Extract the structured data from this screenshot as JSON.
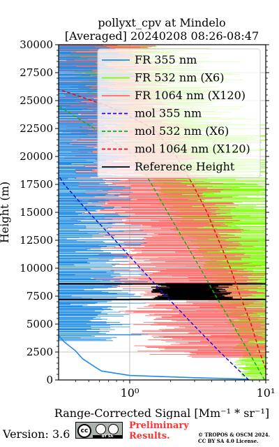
{
  "chart_data": {
    "type": "line",
    "title_line1": "pollyxt_cpv at Mindelo",
    "title_line2": "[Averaged] 20240208 08:26-08:47",
    "xlabel": "Range-Corrected Signal [Mm⁻¹ * sr⁻¹]",
    "ylabel": "Height (m)",
    "x_scale": "log",
    "xlim": [
      0.3,
      10
    ],
    "ylim": [
      0,
      30000
    ],
    "x_ticks": [
      1,
      10
    ],
    "x_tick_labels": [
      "10⁰",
      "10¹"
    ],
    "y_ticks": [
      0,
      2500,
      5000,
      7500,
      10000,
      12500,
      15000,
      17500,
      20000,
      22500,
      25000,
      27500,
      30000
    ],
    "y_tick_labels": [
      "0",
      "2500",
      "5000",
      "7500",
      "10000",
      "12500",
      "15000",
      "17500",
      "20000",
      "22500",
      "25000",
      "27500",
      "30000"
    ],
    "grid": true,
    "legend_position": "top-right",
    "series": [
      {
        "name": "FR 355 nm",
        "color": "#1f8ce8",
        "style": "solid",
        "points": [
          [
            7.5,
            0
          ],
          [
            7.0,
            80
          ],
          [
            3.0,
            200
          ],
          [
            1.0,
            400
          ],
          [
            0.62,
            800
          ],
          [
            0.55,
            1200
          ],
          [
            0.45,
            1900
          ],
          [
            0.4,
            2600
          ],
          [
            0.33,
            3400
          ],
          [
            0.3,
            4000
          ]
        ],
        "noisy_region": [
          3500,
          30000
        ]
      },
      {
        "name": "FR 532 nm (X6)",
        "color": "#7fff00",
        "style": "solid",
        "points": [
          [
            9.5,
            0
          ],
          [
            9.0,
            1500
          ],
          [
            8.5,
            3000
          ],
          [
            7.5,
            5500
          ],
          [
            6.0,
            8000
          ],
          [
            4.0,
            12000
          ],
          [
            2.5,
            16000
          ],
          [
            1.3,
            21000
          ],
          [
            0.7,
            26000
          ],
          [
            0.4,
            30000
          ]
        ],
        "noisy_region": [
          0,
          30000
        ]
      },
      {
        "name": "FR 1064 nm (X120)",
        "color": "#ff6a6a",
        "style": "solid",
        "points": [
          [
            9.0,
            0
          ],
          [
            7.0,
            2000
          ],
          [
            5.5,
            4000
          ],
          [
            4.8,
            6000
          ],
          [
            4.5,
            8000
          ],
          [
            3.0,
            12000
          ],
          [
            2.0,
            16000
          ],
          [
            1.3,
            20000
          ],
          [
            0.9,
            24000
          ],
          [
            0.6,
            30000
          ]
        ],
        "noisy_region": [
          2000,
          30000
        ]
      },
      {
        "name": "mol 355 nm",
        "color": "#1010e0",
        "style": "dashed",
        "points": [
          [
            7.5,
            0
          ],
          [
            4.6,
            2500
          ],
          [
            2.9,
            5000
          ],
          [
            1.85,
            7500
          ],
          [
            1.2,
            10000
          ],
          [
            0.78,
            12500
          ],
          [
            0.5,
            15000
          ],
          [
            0.33,
            17500
          ],
          [
            0.3,
            18300
          ]
        ]
      },
      {
        "name": "mol 532 nm (X6)",
        "color": "#10b010",
        "style": "dashed",
        "points": [
          [
            9.8,
            0
          ],
          [
            7.5,
            2500
          ],
          [
            5.7,
            5000
          ],
          [
            4.3,
            7500
          ],
          [
            3.3,
            10000
          ],
          [
            2.5,
            12500
          ],
          [
            1.9,
            15000
          ],
          [
            1.45,
            17500
          ],
          [
            1.1,
            20000
          ],
          [
            0.55,
            22500
          ],
          [
            0.3,
            24500
          ]
        ]
      },
      {
        "name": "mol 1064 nm (X120)",
        "color": "#e01010",
        "style": "dashed",
        "points": [
          [
            10.0,
            1000
          ],
          [
            9.0,
            2500
          ],
          [
            7.8,
            5000
          ],
          [
            6.5,
            7500
          ],
          [
            5.5,
            10000
          ],
          [
            4.5,
            12500
          ],
          [
            3.7,
            15000
          ],
          [
            2.9,
            17500
          ],
          [
            2.2,
            20000
          ],
          [
            1.5,
            22500
          ],
          [
            0.7,
            24500
          ],
          [
            0.3,
            26000
          ]
        ]
      },
      {
        "name": "Reference Height",
        "color": "#000000",
        "style": "solid",
        "band": {
          "height_range": [
            7200,
            8600
          ],
          "x_range": [
            1.4,
            6.0
          ]
        }
      }
    ]
  },
  "footer": {
    "version": "Version: 3.6",
    "preliminary_line1": "Preliminary",
    "preliminary_line2": "Results.",
    "copyright_line1": "© TROPOS & OSCM 2024.",
    "copyright_line2": "CC BY SA 4.0 License.",
    "license_badge": "cc-by-sa-icon"
  }
}
